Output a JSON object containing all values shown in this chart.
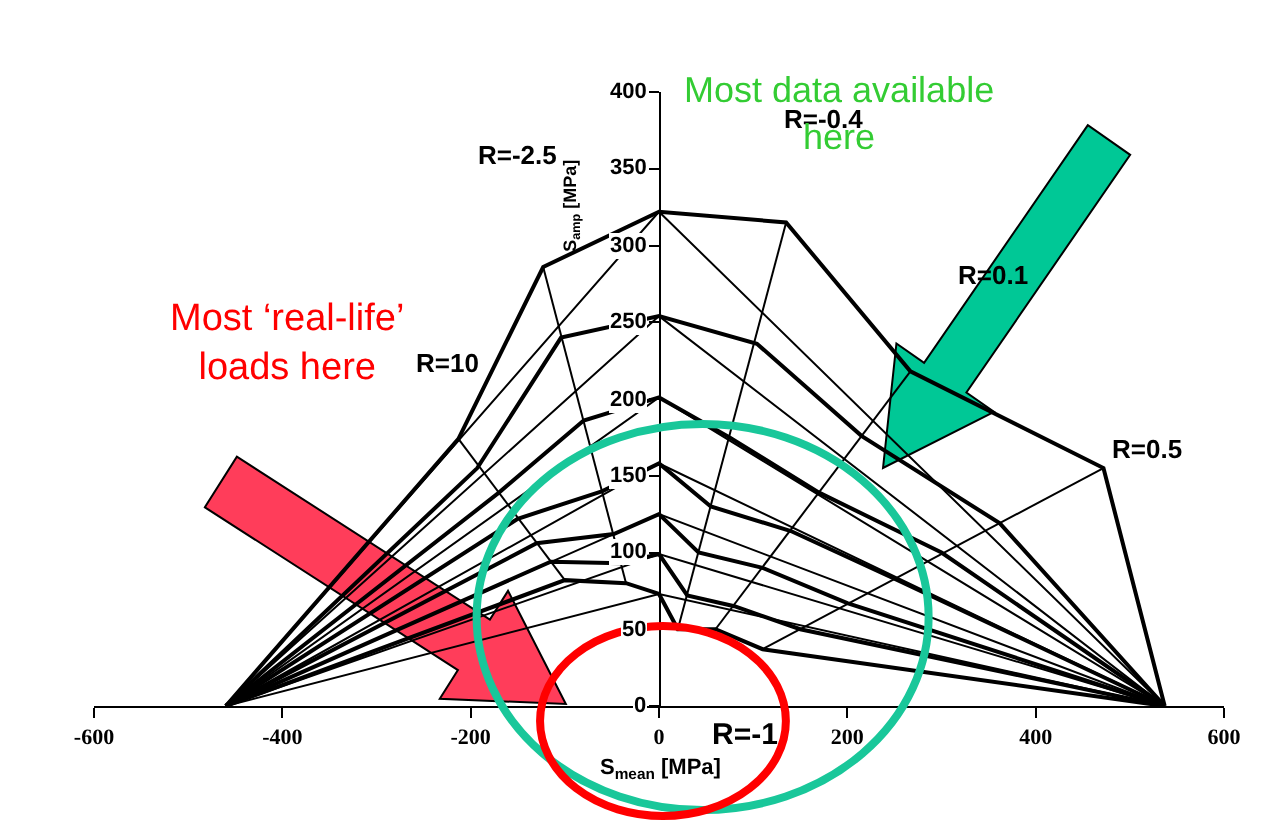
{
  "chart_data": {
    "type": "line",
    "xlabel": "S$_{mean}$ [MPa]",
    "ylabel": "S$_{amp}$ [MPa]",
    "xlim": [
      -600,
      600
    ],
    "xticks": [
      -600,
      -400,
      -200,
      0,
      200,
      400,
      600
    ],
    "ylim": [
      0,
      400
    ],
    "yticks": [
      0,
      50,
      100,
      150,
      200,
      250,
      300,
      350,
      400
    ],
    "marker": "none",
    "line_style": "solid",
    "series": [
      {
        "color": "#000000",
        "x": [
          -460,
          -213,
          -123,
          0,
          135,
          267,
          472,
          537
        ],
        "values": [
          0,
          174,
          286,
          322,
          315,
          218,
          155,
          0
        ]
      },
      {
        "color": "#000000",
        "x": [
          -460,
          -193,
          -104,
          0,
          104,
          215,
          362,
          537
        ],
        "values": [
          0,
          155,
          240,
          254,
          236,
          176,
          119,
          0
        ]
      },
      {
        "color": "#000000",
        "x": [
          -460,
          -170,
          -80,
          0,
          75,
          170,
          300,
          537
        ],
        "values": [
          0,
          139,
          186,
          201,
          175,
          139,
          100,
          0
        ]
      },
      {
        "color": "#000000",
        "x": [
          -460,
          -150,
          -60,
          0,
          55,
          140,
          250,
          537
        ],
        "values": [
          0,
          122,
          140,
          158,
          130,
          114,
          83,
          0
        ]
      },
      {
        "color": "#000000",
        "x": [
          -460,
          -130,
          -48,
          0,
          42,
          110,
          200,
          537
        ],
        "values": [
          0,
          106,
          112,
          125,
          100,
          90,
          67,
          0
        ]
      },
      {
        "color": "#000000",
        "x": [
          -460,
          -115,
          -40,
          0,
          30,
          80,
          150,
          537
        ],
        "values": [
          0,
          94,
          93,
          99,
          72,
          65,
          50,
          0
        ]
      },
      {
        "color": "#000000",
        "x": [
          -460,
          -100,
          -35,
          0,
          20,
          60,
          110,
          537
        ],
        "values": [
          0,
          82,
          80,
          73,
          50,
          50,
          37,
          0
        ]
      },
      {
        "color": "#000000",
        "x": [
          -460,
          0,
          537
        ],
        "values": [
          0,
          322,
          0
        ]
      },
      {
        "color": "#000000",
        "x": [
          -460,
          0,
          537
        ],
        "values": [
          0,
          254,
          0
        ]
      },
      {
        "color": "#000000",
        "x": [
          -460,
          0,
          537
        ],
        "values": [
          0,
          201,
          0
        ]
      },
      {
        "color": "#000000",
        "x": [
          -460,
          0,
          537
        ],
        "values": [
          0,
          158,
          0
        ]
      },
      {
        "color": "#000000",
        "x": [
          -460,
          0,
          537
        ],
        "values": [
          0,
          125,
          0
        ]
      },
      {
        "color": "#000000",
        "x": [
          -460,
          0,
          537
        ],
        "values": [
          0,
          99,
          0
        ]
      },
      {
        "color": "#000000",
        "x": [
          -460,
          0,
          537
        ],
        "values": [
          0,
          73,
          0
        ]
      },
      {
        "color": "#000000",
        "x": [
          -100,
          -213
        ],
        "values": [
          82,
          174
        ]
      },
      {
        "color": "#000000",
        "x": [
          -35,
          -123
        ],
        "values": [
          80,
          286
        ]
      },
      {
        "color": "#000000",
        "x": [
          20,
          135
        ],
        "values": [
          50,
          315
        ]
      },
      {
        "color": "#000000",
        "x": [
          60,
          267
        ],
        "values": [
          50,
          218
        ]
      },
      {
        "color": "#000000",
        "x": [
          110,
          472
        ],
        "values": [
          37,
          155
        ]
      }
    ],
    "annotations": [
      "R=-2.5",
      "R=-0.4",
      "R=0.1",
      "R=10",
      "R=0.5",
      "R=-1",
      "Most data available\nhere",
      "Most ‘real-life’\nloads here"
    ]
  }
}
